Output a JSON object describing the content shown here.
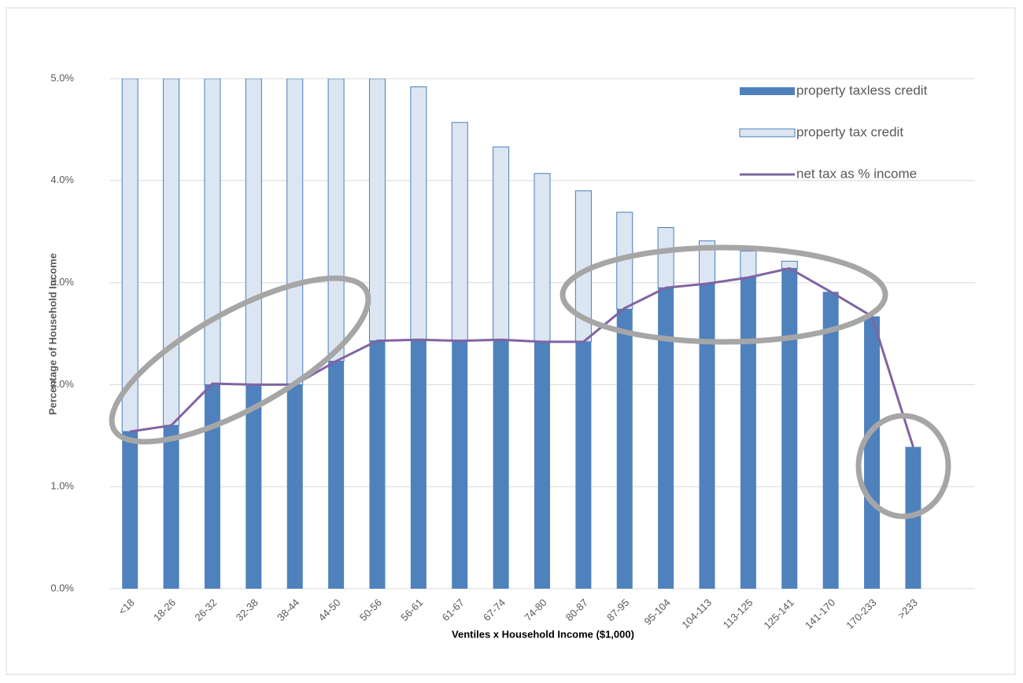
{
  "chart_data": {
    "type": "stacked-bar-line",
    "x_label": "Ventiles x Household Income ($1,000)",
    "y_label": "Percentage of Household Income",
    "categories": [
      "<18",
      "18-26",
      "26-32",
      "32-38",
      "38-44",
      "44-50",
      "50-56",
      "56-61",
      "61-67",
      "67-74",
      "74-80",
      "80-87",
      "87-95",
      "95-104",
      "104-113",
      "113-125",
      "125-141",
      "141-170",
      "170-233",
      ">233",
      null
    ],
    "series": [
      {
        "name": "property taxless credit",
        "kind": "bar",
        "color": "#4f81bd",
        "values": [
          1.54,
          1.6,
          2.0,
          2.0,
          2.0,
          2.23,
          2.43,
          2.43,
          2.43,
          2.43,
          2.42,
          2.42,
          2.74,
          2.95,
          2.99,
          3.05,
          3.14,
          2.91,
          2.67,
          1.39,
          null
        ]
      },
      {
        "name": "property tax credit",
        "kind": "bar",
        "color": "#dce6f2",
        "edge_color": "#4a7ebb",
        "values": [
          3.46,
          3.4,
          3.0,
          3.0,
          3.0,
          2.77,
          2.57,
          2.49,
          2.14,
          1.9,
          1.65,
          1.48,
          0.95,
          0.59,
          0.42,
          0.26,
          0.07,
          0,
          0,
          0,
          null
        ]
      },
      {
        "name": "net tax as % income",
        "kind": "line",
        "color": "#8064a2",
        "values": [
          1.54,
          1.6,
          2.01,
          2.0,
          2.0,
          2.23,
          2.43,
          2.44,
          2.43,
          2.44,
          2.42,
          2.42,
          2.75,
          2.95,
          2.99,
          3.05,
          3.14,
          2.91,
          2.67,
          1.39,
          null
        ]
      }
    ],
    "ylim": [
      0,
      5
    ],
    "yticks": [
      {
        "value": 0,
        "label": "0.0%"
      },
      {
        "value": 1,
        "label": "1.0%"
      },
      {
        "value": 2,
        "label": "2.0%"
      },
      {
        "value": 3,
        "label": "3.0%"
      },
      {
        "value": 4,
        "label": "4.0%"
      },
      {
        "value": 5,
        "label": "5.0%"
      }
    ],
    "grid": true,
    "legend": "top-right"
  }
}
